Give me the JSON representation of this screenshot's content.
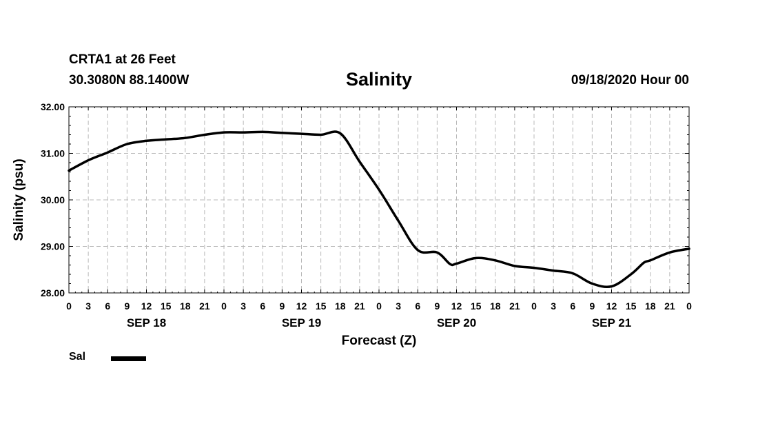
{
  "header": {
    "station": "CRTA1 at 26 Feet",
    "coords": "30.3080N 88.1400W",
    "title": "Salinity",
    "issued": "09/18/2020 Hour 00"
  },
  "legend": {
    "label": "Sal",
    "color": "#000000"
  },
  "chart_data": {
    "type": "line",
    "title": "Salinity",
    "xlabel": "Forecast (Z)",
    "ylabel": "Salinity (psu)",
    "ylim": [
      28.0,
      32.0
    ],
    "yticks": [
      "28.00",
      "29.00",
      "30.00",
      "31.00",
      "32.00"
    ],
    "xlim": [
      0,
      96
    ],
    "xtick_hours": [
      0,
      3,
      6,
      9,
      12,
      15,
      18,
      21,
      24,
      27,
      30,
      33,
      36,
      39,
      42,
      45,
      48,
      51,
      54,
      57,
      60,
      63,
      66,
      69,
      72,
      75,
      78,
      81,
      84,
      87,
      90,
      93,
      96
    ],
    "xtick_labels": [
      "0",
      "3",
      "6",
      "9",
      "12",
      "15",
      "18",
      "21",
      "0",
      "3",
      "6",
      "9",
      "12",
      "15",
      "18",
      "21",
      "0",
      "3",
      "6",
      "9",
      "12",
      "15",
      "18",
      "21",
      "0",
      "3",
      "6",
      "9",
      "12",
      "15",
      "18",
      "21",
      "0"
    ],
    "date_labels": [
      {
        "label": "SEP 18",
        "hour": 12
      },
      {
        "label": "SEP 19",
        "hour": 36
      },
      {
        "label": "SEP 20",
        "hour": 60
      },
      {
        "label": "SEP 21",
        "hour": 84
      }
    ],
    "grid": true,
    "series": [
      {
        "name": "Sal",
        "x": [
          0,
          3,
          6,
          9,
          12,
          15,
          18,
          21,
          24,
          27,
          30,
          33,
          36,
          39,
          42,
          45,
          48,
          51,
          54,
          57,
          59,
          60,
          63,
          66,
          69,
          72,
          75,
          78,
          81,
          84,
          87,
          89,
          90,
          93,
          96
        ],
        "values": [
          30.63,
          30.85,
          31.02,
          31.2,
          31.27,
          31.3,
          31.33,
          31.4,
          31.45,
          31.45,
          31.46,
          31.44,
          31.42,
          31.4,
          31.43,
          30.82,
          30.22,
          29.55,
          28.92,
          28.87,
          28.62,
          28.63,
          28.75,
          28.7,
          28.58,
          28.54,
          28.48,
          28.42,
          28.2,
          28.14,
          28.4,
          28.65,
          28.7,
          28.87,
          28.95
        ]
      }
    ]
  }
}
